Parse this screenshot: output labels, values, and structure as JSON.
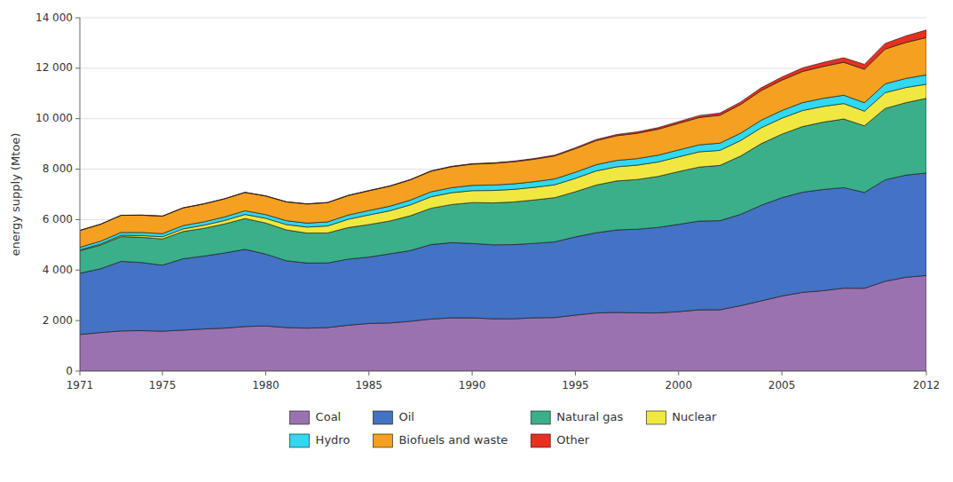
{
  "chart_data": {
    "type": "area",
    "stacked": true,
    "ylabel": "energy supply (Mtoe)",
    "x": [
      1971,
      1972,
      1973,
      1974,
      1975,
      1976,
      1977,
      1978,
      1979,
      1980,
      1981,
      1982,
      1983,
      1984,
      1985,
      1986,
      1987,
      1988,
      1989,
      1990,
      1991,
      1992,
      1993,
      1994,
      1995,
      1996,
      1997,
      1998,
      1999,
      2000,
      2001,
      2002,
      2003,
      2004,
      2005,
      2006,
      2007,
      2008,
      2009,
      2010,
      2011,
      2012
    ],
    "series": [
      {
        "name": "Coal",
        "color": "#9b72b0",
        "values": [
          1449,
          1524,
          1591,
          1600,
          1580,
          1621,
          1668,
          1700,
          1766,
          1787,
          1723,
          1699,
          1724,
          1816,
          1886,
          1905,
          1972,
          2060,
          2109,
          2107,
          2073,
          2070,
          2110,
          2120,
          2216,
          2300,
          2323,
          2303,
          2302,
          2354,
          2425,
          2428,
          2590,
          2780,
          2972,
          3118,
          3184,
          3283,
          3279,
          3555,
          3714,
          3787
        ]
      },
      {
        "name": "Oil",
        "color": "#4472c4",
        "values": [
          2427,
          2530,
          2756,
          2699,
          2616,
          2829,
          2888,
          2978,
          3058,
          2850,
          2650,
          2580,
          2560,
          2620,
          2630,
          2740,
          2800,
          2950,
          2980,
          2950,
          2930,
          2940,
          2950,
          3000,
          3100,
          3180,
          3270,
          3320,
          3390,
          3460,
          3520,
          3530,
          3620,
          3790,
          3895,
          3970,
          4010,
          3985,
          3800,
          4020,
          4050,
          4060
        ]
      },
      {
        "name": "Natural gas",
        "color": "#3aaf8a",
        "values": [
          895,
          940,
          980,
          1000,
          1040,
          1080,
          1100,
          1150,
          1220,
          1230,
          1220,
          1190,
          1190,
          1250,
          1290,
          1300,
          1380,
          1440,
          1510,
          1620,
          1660,
          1690,
          1720,
          1750,
          1790,
          1890,
          1940,
          1970,
          2020,
          2090,
          2140,
          2190,
          2310,
          2440,
          2520,
          2600,
          2670,
          2720,
          2640,
          2830,
          2870,
          2960
        ]
      },
      {
        "name": "Nuclear",
        "color": "#f0e840",
        "values": [
          29,
          40,
          53,
          69,
          84,
          103,
          122,
          135,
          162,
          186,
          212,
          236,
          275,
          330,
          380,
          404,
          430,
          454,
          467,
          471,
          492,
          498,
          499,
          510,
          530,
          558,
          560,
          567,
          572,
          583,
          602,
          596,
          614,
          630,
          632,
          635,
          622,
          612,
          579,
          626,
          600,
          560
        ]
      },
      {
        "name": "Hydro",
        "color": "#30d8f0",
        "values": [
          104,
          110,
          114,
          123,
          125,
          131,
          134,
          141,
          145,
          148,
          153,
          158,
          162,
          168,
          175,
          181,
          188,
          196,
          200,
          210,
          217,
          220,
          224,
          234,
          243,
          247,
          253,
          260,
          270,
          274,
          278,
          288,
          290,
          300,
          305,
          315,
          321,
          330,
          335,
          350,
          360,
          370
        ]
      },
      {
        "name": "Biofuels and waste",
        "color": "#f5a020",
        "values": [
          667,
          672,
          678,
          686,
          693,
          700,
          710,
          718,
          726,
          735,
          745,
          755,
          762,
          772,
          782,
          793,
          803,
          816,
          829,
          840,
          857,
          874,
          891,
          911,
          934,
          955,
          979,
          1003,
          1028,
          1054,
          1083,
          1105,
          1138,
          1176,
          1203,
          1233,
          1264,
          1306,
          1325,
          1376,
          1426,
          1478
        ]
      },
      {
        "name": "Other",
        "color": "#e83020",
        "values": [
          2,
          3,
          4,
          4,
          5,
          5,
          6,
          6,
          7,
          7,
          8,
          9,
          10,
          11,
          13,
          14,
          16,
          18,
          20,
          22,
          24,
          27,
          30,
          34,
          38,
          44,
          50,
          56,
          63,
          70,
          78,
          87,
          98,
          110,
          125,
          142,
          160,
          179,
          196,
          225,
          260,
          300
        ]
      }
    ],
    "xlim": [
      1971,
      2012
    ],
    "xticks": [
      1971,
      1975,
      1980,
      1985,
      1990,
      1995,
      2000,
      2005,
      2012
    ],
    "ylim": [
      0,
      14000
    ],
    "yticks": [
      0,
      {
        "value": 2000,
        "label": "2 000"
      },
      {
        "value": 4000,
        "label": "4 000"
      },
      {
        "value": 6000,
        "label": "6 000"
      },
      {
        "value": 8000,
        "label": "8 000"
      },
      {
        "value": 10000,
        "label": "10 000"
      },
      {
        "value": 12000,
        "label": "12 000"
      },
      {
        "value": 14000,
        "label": "14 000"
      }
    ],
    "grid": true,
    "legend": "bottom"
  }
}
